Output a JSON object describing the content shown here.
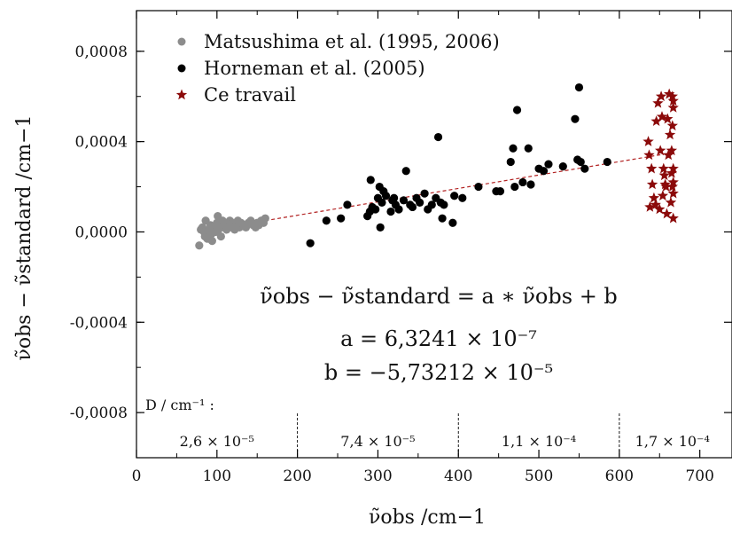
{
  "chart_data": {
    "type": "scatter",
    "xlabel": "ν̃obs /cm−1",
    "ylabel": "ν̃obs − ν̃standard /cm−1",
    "xlim": [
      0,
      740
    ],
    "ylim": [
      -0.001,
      0.00098
    ],
    "xticks": [
      0,
      100,
      200,
      300,
      400,
      500,
      600,
      700
    ],
    "xtick_labels": [
      "0",
      "100",
      "200",
      "300",
      "400",
      "500",
      "600",
      "700"
    ],
    "yticks": [
      -0.0008,
      -0.0004,
      0.0,
      0.0004,
      0.0008
    ],
    "ytick_labels": [
      "-0,0008",
      "-0,0004",
      "0,0000",
      "0,0004",
      "0,0008"
    ],
    "legend_position": "top-left",
    "series": [
      {
        "name": "Matsushima et al. (1995, 2006)",
        "marker": "circle",
        "color": "#8c8c8c",
        "points": [
          [
            78,
            -6e-05
          ],
          [
            80,
            1e-05
          ],
          [
            82,
            2e-05
          ],
          [
            84,
            0.0
          ],
          [
            85,
            -2e-05
          ],
          [
            86,
            5e-05
          ],
          [
            88,
            -3e-05
          ],
          [
            90,
            1e-05
          ],
          [
            92,
            3e-05
          ],
          [
            93,
            -1e-05
          ],
          [
            94,
            -4e-05
          ],
          [
            96,
            2e-05
          ],
          [
            98,
            0.0
          ],
          [
            100,
            4e-05
          ],
          [
            101,
            7e-05
          ],
          [
            102,
            1e-05
          ],
          [
            104,
            3e-05
          ],
          [
            105,
            -2e-05
          ],
          [
            107,
            5e-05
          ],
          [
            108,
            2e-05
          ],
          [
            110,
            4e-05
          ],
          [
            112,
            1e-05
          ],
          [
            114,
            3e-05
          ],
          [
            116,
            5e-05
          ],
          [
            118,
            2e-05
          ],
          [
            120,
            4e-05
          ],
          [
            122,
            1e-05
          ],
          [
            124,
            3e-05
          ],
          [
            126,
            5e-05
          ],
          [
            128,
            2e-05
          ],
          [
            130,
            4e-05
          ],
          [
            133,
            3e-05
          ],
          [
            136,
            2e-05
          ],
          [
            139,
            4e-05
          ],
          [
            142,
            5e-05
          ],
          [
            145,
            3e-05
          ],
          [
            148,
            2e-05
          ],
          [
            150,
            4e-05
          ],
          [
            152,
            3e-05
          ],
          [
            155,
            5e-05
          ],
          [
            158,
            4e-05
          ],
          [
            160,
            6e-05
          ]
        ]
      },
      {
        "name": "Horneman et al. (2005)",
        "marker": "circle",
        "color": "#000000",
        "points": [
          [
            216,
            -5e-05
          ],
          [
            236,
            5e-05
          ],
          [
            254,
            6e-05
          ],
          [
            262,
            0.00012
          ],
          [
            287,
            7e-05
          ],
          [
            290,
            9e-05
          ],
          [
            291,
            0.00023
          ],
          [
            293,
            0.00011
          ],
          [
            297,
            0.0001
          ],
          [
            300,
            0.00015
          ],
          [
            302,
            0.0002
          ],
          [
            303,
            2e-05
          ],
          [
            305,
            0.00013
          ],
          [
            307,
            0.00018
          ],
          [
            310,
            0.00016
          ],
          [
            316,
            9e-05
          ],
          [
            318,
            0.00014
          ],
          [
            320,
            0.00015
          ],
          [
            322,
            0.00012
          ],
          [
            326,
            0.0001
          ],
          [
            332,
            0.00014
          ],
          [
            335,
            0.00027
          ],
          [
            340,
            0.00012
          ],
          [
            343,
            0.00011
          ],
          [
            348,
            0.00015
          ],
          [
            352,
            0.00013
          ],
          [
            358,
            0.00017
          ],
          [
            362,
            0.0001
          ],
          [
            367,
            0.00012
          ],
          [
            372,
            0.00015
          ],
          [
            375,
            0.00042
          ],
          [
            378,
            0.00013
          ],
          [
            380,
            6e-05
          ],
          [
            382,
            0.00012
          ],
          [
            393,
            4e-05
          ],
          [
            395,
            0.00016
          ],
          [
            405,
            0.00015
          ],
          [
            425,
            0.0002
          ],
          [
            447,
            0.00018
          ],
          [
            452,
            0.00018
          ],
          [
            465,
            0.00031
          ],
          [
            468,
            0.00037
          ],
          [
            470,
            0.0002
          ],
          [
            473,
            0.00054
          ],
          [
            480,
            0.00022
          ],
          [
            487,
            0.00037
          ],
          [
            490,
            0.00021
          ],
          [
            500,
            0.00028
          ],
          [
            506,
            0.00027
          ],
          [
            512,
            0.0003
          ],
          [
            530,
            0.00029
          ],
          [
            545,
            0.0005
          ],
          [
            548,
            0.00032
          ],
          [
            550,
            0.00064
          ],
          [
            552,
            0.00031
          ],
          [
            557,
            0.00028
          ],
          [
            585,
            0.00031
          ]
        ]
      },
      {
        "name": "Ce travail",
        "marker": "star",
        "color": "#8b0a0a",
        "points": [
          [
            636,
            0.0004
          ],
          [
            637,
            0.00034
          ],
          [
            638,
            0.00011
          ],
          [
            640,
            0.00028
          ],
          [
            641,
            0.00021
          ],
          [
            643,
            0.00015
          ],
          [
            645,
            0.00012
          ],
          [
            646,
            0.00049
          ],
          [
            648,
            0.00057
          ],
          [
            650,
            0.0001
          ],
          [
            651,
            0.00036
          ],
          [
            652,
            0.0006
          ],
          [
            653,
            0.00051
          ],
          [
            654,
            0.00016
          ],
          [
            655,
            0.00028
          ],
          [
            656,
            0.00025
          ],
          [
            657,
            0.00021
          ],
          [
            658,
            0.0002
          ],
          [
            659,
            8e-05
          ],
          [
            660,
            0.0005
          ],
          [
            661,
            0.00034
          ],
          [
            662,
            0.00061
          ],
          [
            663,
            0.00043
          ],
          [
            664,
            0.00013
          ],
          [
            665,
            0.00036
          ],
          [
            665,
            0.00026
          ],
          [
            666,
            0.0006
          ],
          [
            666,
            0.00047
          ],
          [
            666,
            0.0002
          ],
          [
            667,
            0.00058
          ],
          [
            667,
            0.00055
          ],
          [
            667,
            0.00028
          ],
          [
            667,
            0.00022
          ],
          [
            667,
            0.00017
          ],
          [
            667,
            6e-05
          ]
        ]
      }
    ],
    "fit_line": {
      "x": [
        160,
        665
      ],
      "y": [
        5e-05,
        0.00035
      ],
      "style": "dashed",
      "color": "#b22222"
    },
    "equation": {
      "line1": "ν̃obs − ν̃standard = a ∗ ν̃obs + b",
      "line2": "a = 6,3241 × 10⁻⁷",
      "line3": "b = −5,73212 × 10⁻⁵"
    },
    "regions": {
      "header": "D / cm⁻¹ :",
      "dividers_x": [
        200,
        400,
        600
      ],
      "labels": [
        "2,6 × 10⁻⁵",
        "7,4 × 10⁻⁵",
        "1,1 × 10⁻⁴",
        "1,7 × 10⁻⁴"
      ],
      "label_centers_x": [
        100,
        300,
        500,
        666
      ]
    }
  }
}
